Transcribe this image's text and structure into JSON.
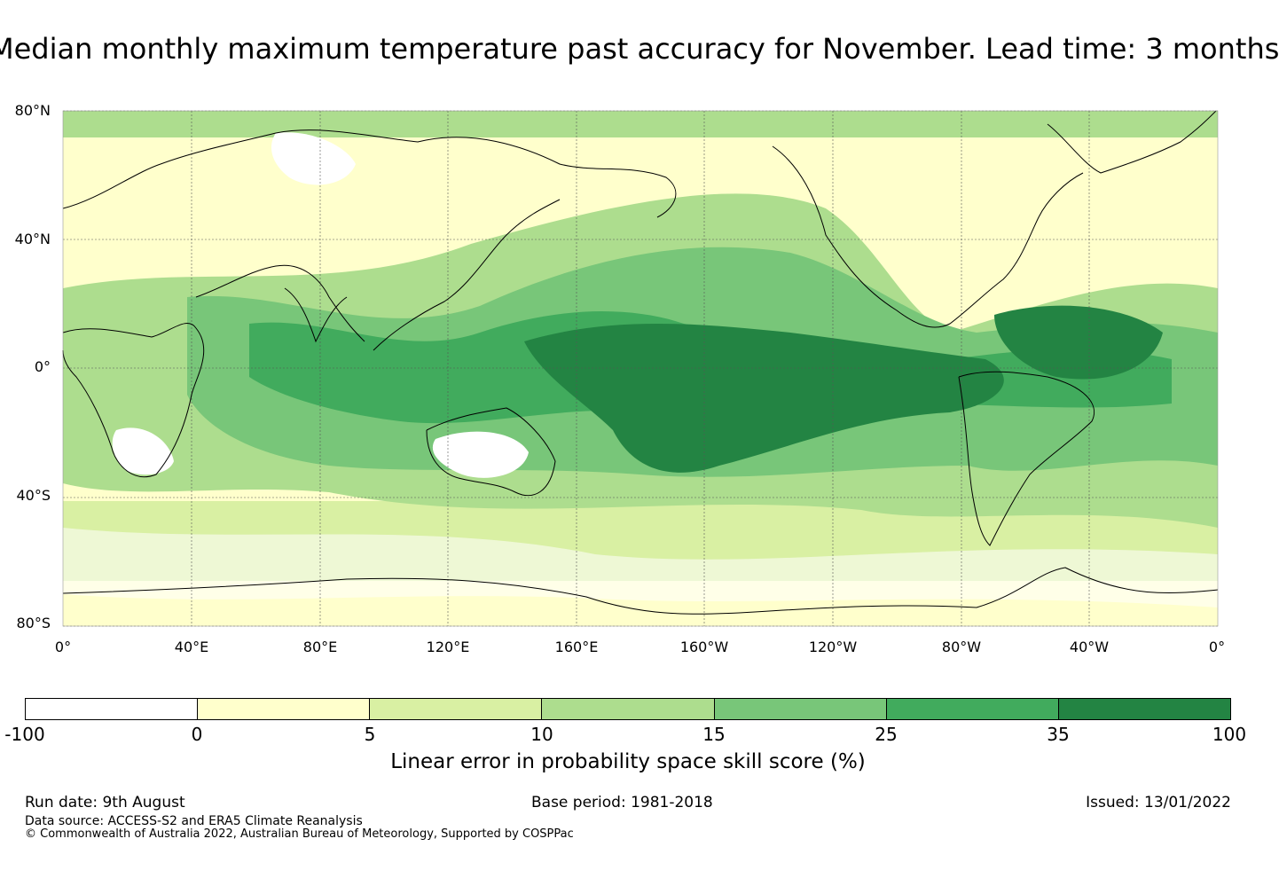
{
  "title": "Median monthly maximum temperature past accuracy for November. Lead time: 3 months",
  "map": {
    "lat_labels": [
      "80°N",
      "40°N",
      "0°",
      "40°S",
      "80°S"
    ],
    "lon_labels": [
      "0°",
      "40°E",
      "80°E",
      "120°E",
      "160°E",
      "160°W",
      "120°W",
      "80°W",
      "40°W",
      "0°"
    ],
    "lon_range": [
      0,
      360
    ],
    "lat_range": [
      -80,
      80
    ],
    "gridlines": true,
    "coastlines": true
  },
  "colorbar": {
    "ticks": [
      "-100",
      "0",
      "5",
      "10",
      "15",
      "25",
      "35",
      "100"
    ],
    "colors": [
      "#ffffff",
      "#ffffcc",
      "#d9f0a3",
      "#addd8e",
      "#78c679",
      "#41ab5d",
      "#238443"
    ],
    "label": "Linear error in probability space skill score (%)"
  },
  "footer": {
    "run_date": "Run date: 9th August",
    "base_period": "Base period: 1981-2018",
    "issued": "Issued: 13/01/2022",
    "data_source": "Data source: ACCESS-S2 and ERA5 Climate Reanalysis",
    "copyright": "© Commonwealth of Australia 2022, Australian Bureau of Meteorology, Supported by COSPPac"
  }
}
